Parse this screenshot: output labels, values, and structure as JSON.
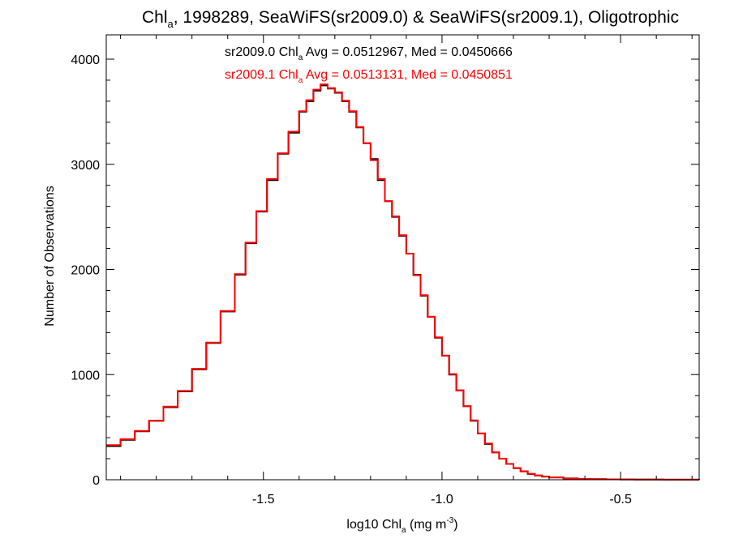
{
  "chart_data": {
    "type": "line",
    "title": {
      "pre": "Chl",
      "sub": "a",
      "post": ", 1998289, SeaWiFS(sr2009.0) & SeaWiFS(sr2009.1), Oligotrophic"
    },
    "xlabel": {
      "pre": "log10 Chl",
      "sub": "a",
      "mid": " (mg m",
      "sup": "-3",
      "post": ")"
    },
    "ylabel": "Number of Observations",
    "xlim": [
      -1.94,
      -0.28
    ],
    "ylim": [
      0,
      4000
    ],
    "x_ticks": [
      {
        "value": -1.5,
        "label": "-1.5"
      },
      {
        "value": -1.0,
        "label": "-1.0"
      },
      {
        "value": -0.5,
        "label": "-0.5"
      }
    ],
    "y_ticks": [
      {
        "value": 0,
        "label": "0"
      },
      {
        "value": 1000,
        "label": "1000"
      },
      {
        "value": 2000,
        "label": "2000"
      },
      {
        "value": 3000,
        "label": "3000"
      },
      {
        "value": 4000,
        "label": "4000"
      }
    ],
    "annotations": [
      {
        "color": "#000000",
        "pre": "sr2009.0 Chl",
        "sub": "a",
        "post": " Avg = 0.0512967, Med = 0.0450666"
      },
      {
        "color": "#ff0000",
        "pre": "sr2009.1 Chl",
        "sub": "a",
        "post": " Avg = 0.0513131, Med = 0.0450851"
      }
    ],
    "series": [
      {
        "color": "#000000",
        "x": [
          -1.94,
          -1.9,
          -1.86,
          -1.82,
          -1.78,
          -1.74,
          -1.7,
          -1.66,
          -1.62,
          -1.58,
          -1.55,
          -1.52,
          -1.49,
          -1.46,
          -1.43,
          -1.4,
          -1.38,
          -1.36,
          -1.34,
          -1.32,
          -1.3,
          -1.28,
          -1.26,
          -1.24,
          -1.22,
          -1.2,
          -1.18,
          -1.16,
          -1.14,
          -1.12,
          -1.1,
          -1.08,
          -1.06,
          -1.04,
          -1.02,
          -1.0,
          -0.98,
          -0.96,
          -0.94,
          -0.92,
          -0.9,
          -0.88,
          -0.86,
          -0.84,
          -0.82,
          -0.8,
          -0.78,
          -0.76,
          -0.74,
          -0.72,
          -0.7,
          -0.66,
          -0.62,
          -0.58,
          -0.54,
          -0.5,
          -0.46,
          -0.42,
          -0.38,
          -0.34,
          -0.3,
          -0.28
        ],
        "y": [
          320,
          380,
          460,
          560,
          690,
          840,
          1050,
          1300,
          1600,
          1950,
          2250,
          2550,
          2850,
          3100,
          3300,
          3500,
          3600,
          3700,
          3750,
          3720,
          3680,
          3600,
          3500,
          3350,
          3200,
          3050,
          2850,
          2650,
          2500,
          2320,
          2150,
          1950,
          1750,
          1550,
          1350,
          1180,
          1000,
          850,
          700,
          560,
          440,
          340,
          260,
          200,
          150,
          110,
          80,
          55,
          40,
          30,
          22,
          12,
          8,
          6,
          4,
          3,
          2,
          2,
          1,
          1,
          1,
          0
        ]
      },
      {
        "color": "#ff0000",
        "x": [
          -1.94,
          -1.9,
          -1.86,
          -1.82,
          -1.78,
          -1.74,
          -1.7,
          -1.66,
          -1.62,
          -1.58,
          -1.55,
          -1.52,
          -1.49,
          -1.46,
          -1.43,
          -1.4,
          -1.38,
          -1.36,
          -1.34,
          -1.32,
          -1.3,
          -1.28,
          -1.26,
          -1.24,
          -1.22,
          -1.2,
          -1.18,
          -1.16,
          -1.14,
          -1.12,
          -1.1,
          -1.08,
          -1.06,
          -1.04,
          -1.02,
          -1.0,
          -0.98,
          -0.96,
          -0.94,
          -0.92,
          -0.9,
          -0.88,
          -0.86,
          -0.84,
          -0.82,
          -0.8,
          -0.78,
          -0.76,
          -0.74,
          -0.72,
          -0.7,
          -0.66,
          -0.62,
          -0.58,
          -0.54,
          -0.5,
          -0.46,
          -0.42,
          -0.38,
          -0.34,
          -0.3,
          -0.28
        ],
        "y": [
          330,
          385,
          465,
          560,
          695,
          845,
          1055,
          1305,
          1605,
          1955,
          2255,
          2555,
          2860,
          3105,
          3310,
          3505,
          3610,
          3710,
          3760,
          3725,
          3685,
          3605,
          3505,
          3355,
          3200,
          3040,
          2860,
          2650,
          2505,
          2325,
          2150,
          1945,
          1755,
          1550,
          1355,
          1180,
          1005,
          850,
          700,
          565,
          440,
          345,
          260,
          200,
          150,
          112,
          80,
          56,
          40,
          30,
          22,
          12,
          8,
          6,
          4,
          3,
          2,
          2,
          1,
          1,
          1,
          0
        ]
      }
    ]
  }
}
